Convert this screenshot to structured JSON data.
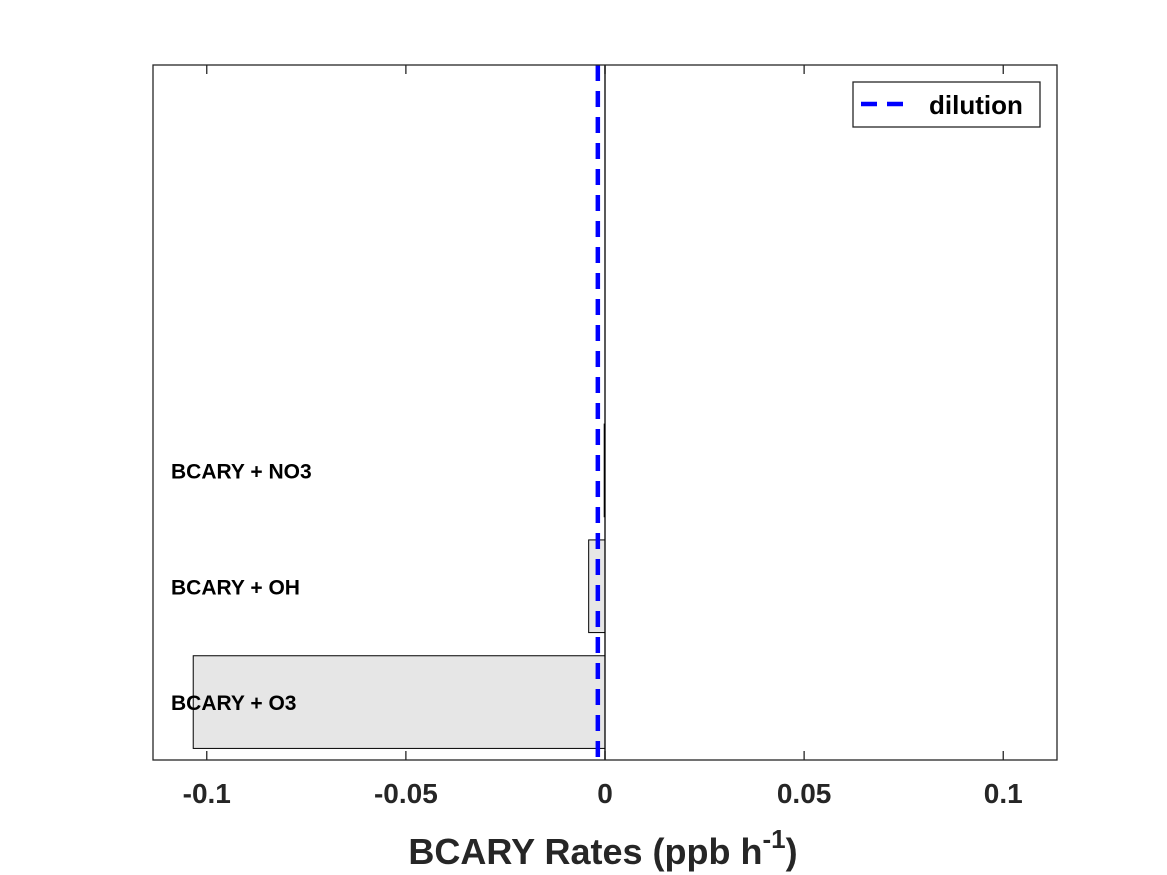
{
  "chart_data": {
    "type": "bar",
    "orientation": "horizontal",
    "categories": [
      "BCARY + O3",
      "BCARY + OH",
      "BCARY + NO3"
    ],
    "values": [
      -0.1034,
      -0.0041,
      -0.0002
    ],
    "xlabel": "BCARY Rates (ppb h",
    "xlabel_sup": "-1",
    "xlabel_suffix": ")",
    "xlim": [
      -0.1135,
      0.1135
    ],
    "xticks": [
      -0.1,
      -0.05,
      0,
      0.05,
      0.1
    ],
    "xtick_labels": [
      "-0.1",
      "-0.05",
      "0",
      "0.05",
      "0.1"
    ],
    "y_slots": 6,
    "reference_line": {
      "name": "dilution",
      "x": -0.0018,
      "style": "dashed",
      "color": "#0000ff"
    },
    "legend": {
      "entries": [
        "dilution"
      ],
      "placement": "top-right"
    },
    "bar_fill": "#e6e6e6",
    "grid": false
  }
}
